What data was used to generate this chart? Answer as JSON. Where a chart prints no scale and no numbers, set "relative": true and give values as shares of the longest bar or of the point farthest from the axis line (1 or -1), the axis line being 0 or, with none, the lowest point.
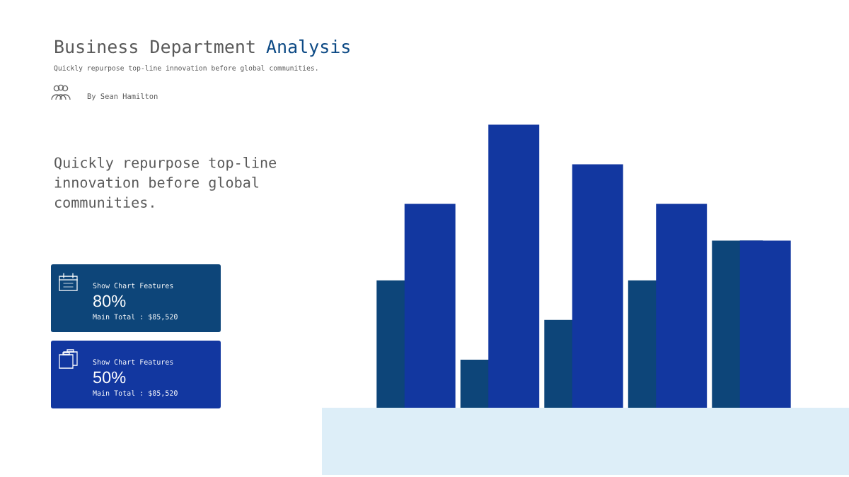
{
  "chart_data": [
    {
      "type": "bar",
      "title": "Business Department Analysis",
      "subtitle": "Quickly repurpose top-line innovation before global communities.",
      "annotations": [
        "By Sean Hamilton",
        "Quickly repurpose top-line innovation before global communities."
      ],
      "categories": [
        null,
        null,
        null,
        null,
        null
      ],
      "relative": true,
      "series": [
        {
          "color": "#0d4579",
          "values": [
            0.45,
            0.17,
            0.31,
            0.45,
            0.59
          ]
        },
        {
          "color": "#1237a0",
          "values": [
            0.72,
            1,
            0.86,
            0.72,
            0.59
          ]
        }
      ]
    },
    {
      "type": "other",
      "color": "#0d4579",
      "annotations": [
        "Show Chart Features",
        "80%",
        "Main Total : $85,520"
      ]
    },
    {
      "type": "other",
      "color": "#1237a0",
      "annotations": [
        "Show Chart Features",
        "50%",
        "Main Total : $85,520"
      ]
    }
  ]
}
